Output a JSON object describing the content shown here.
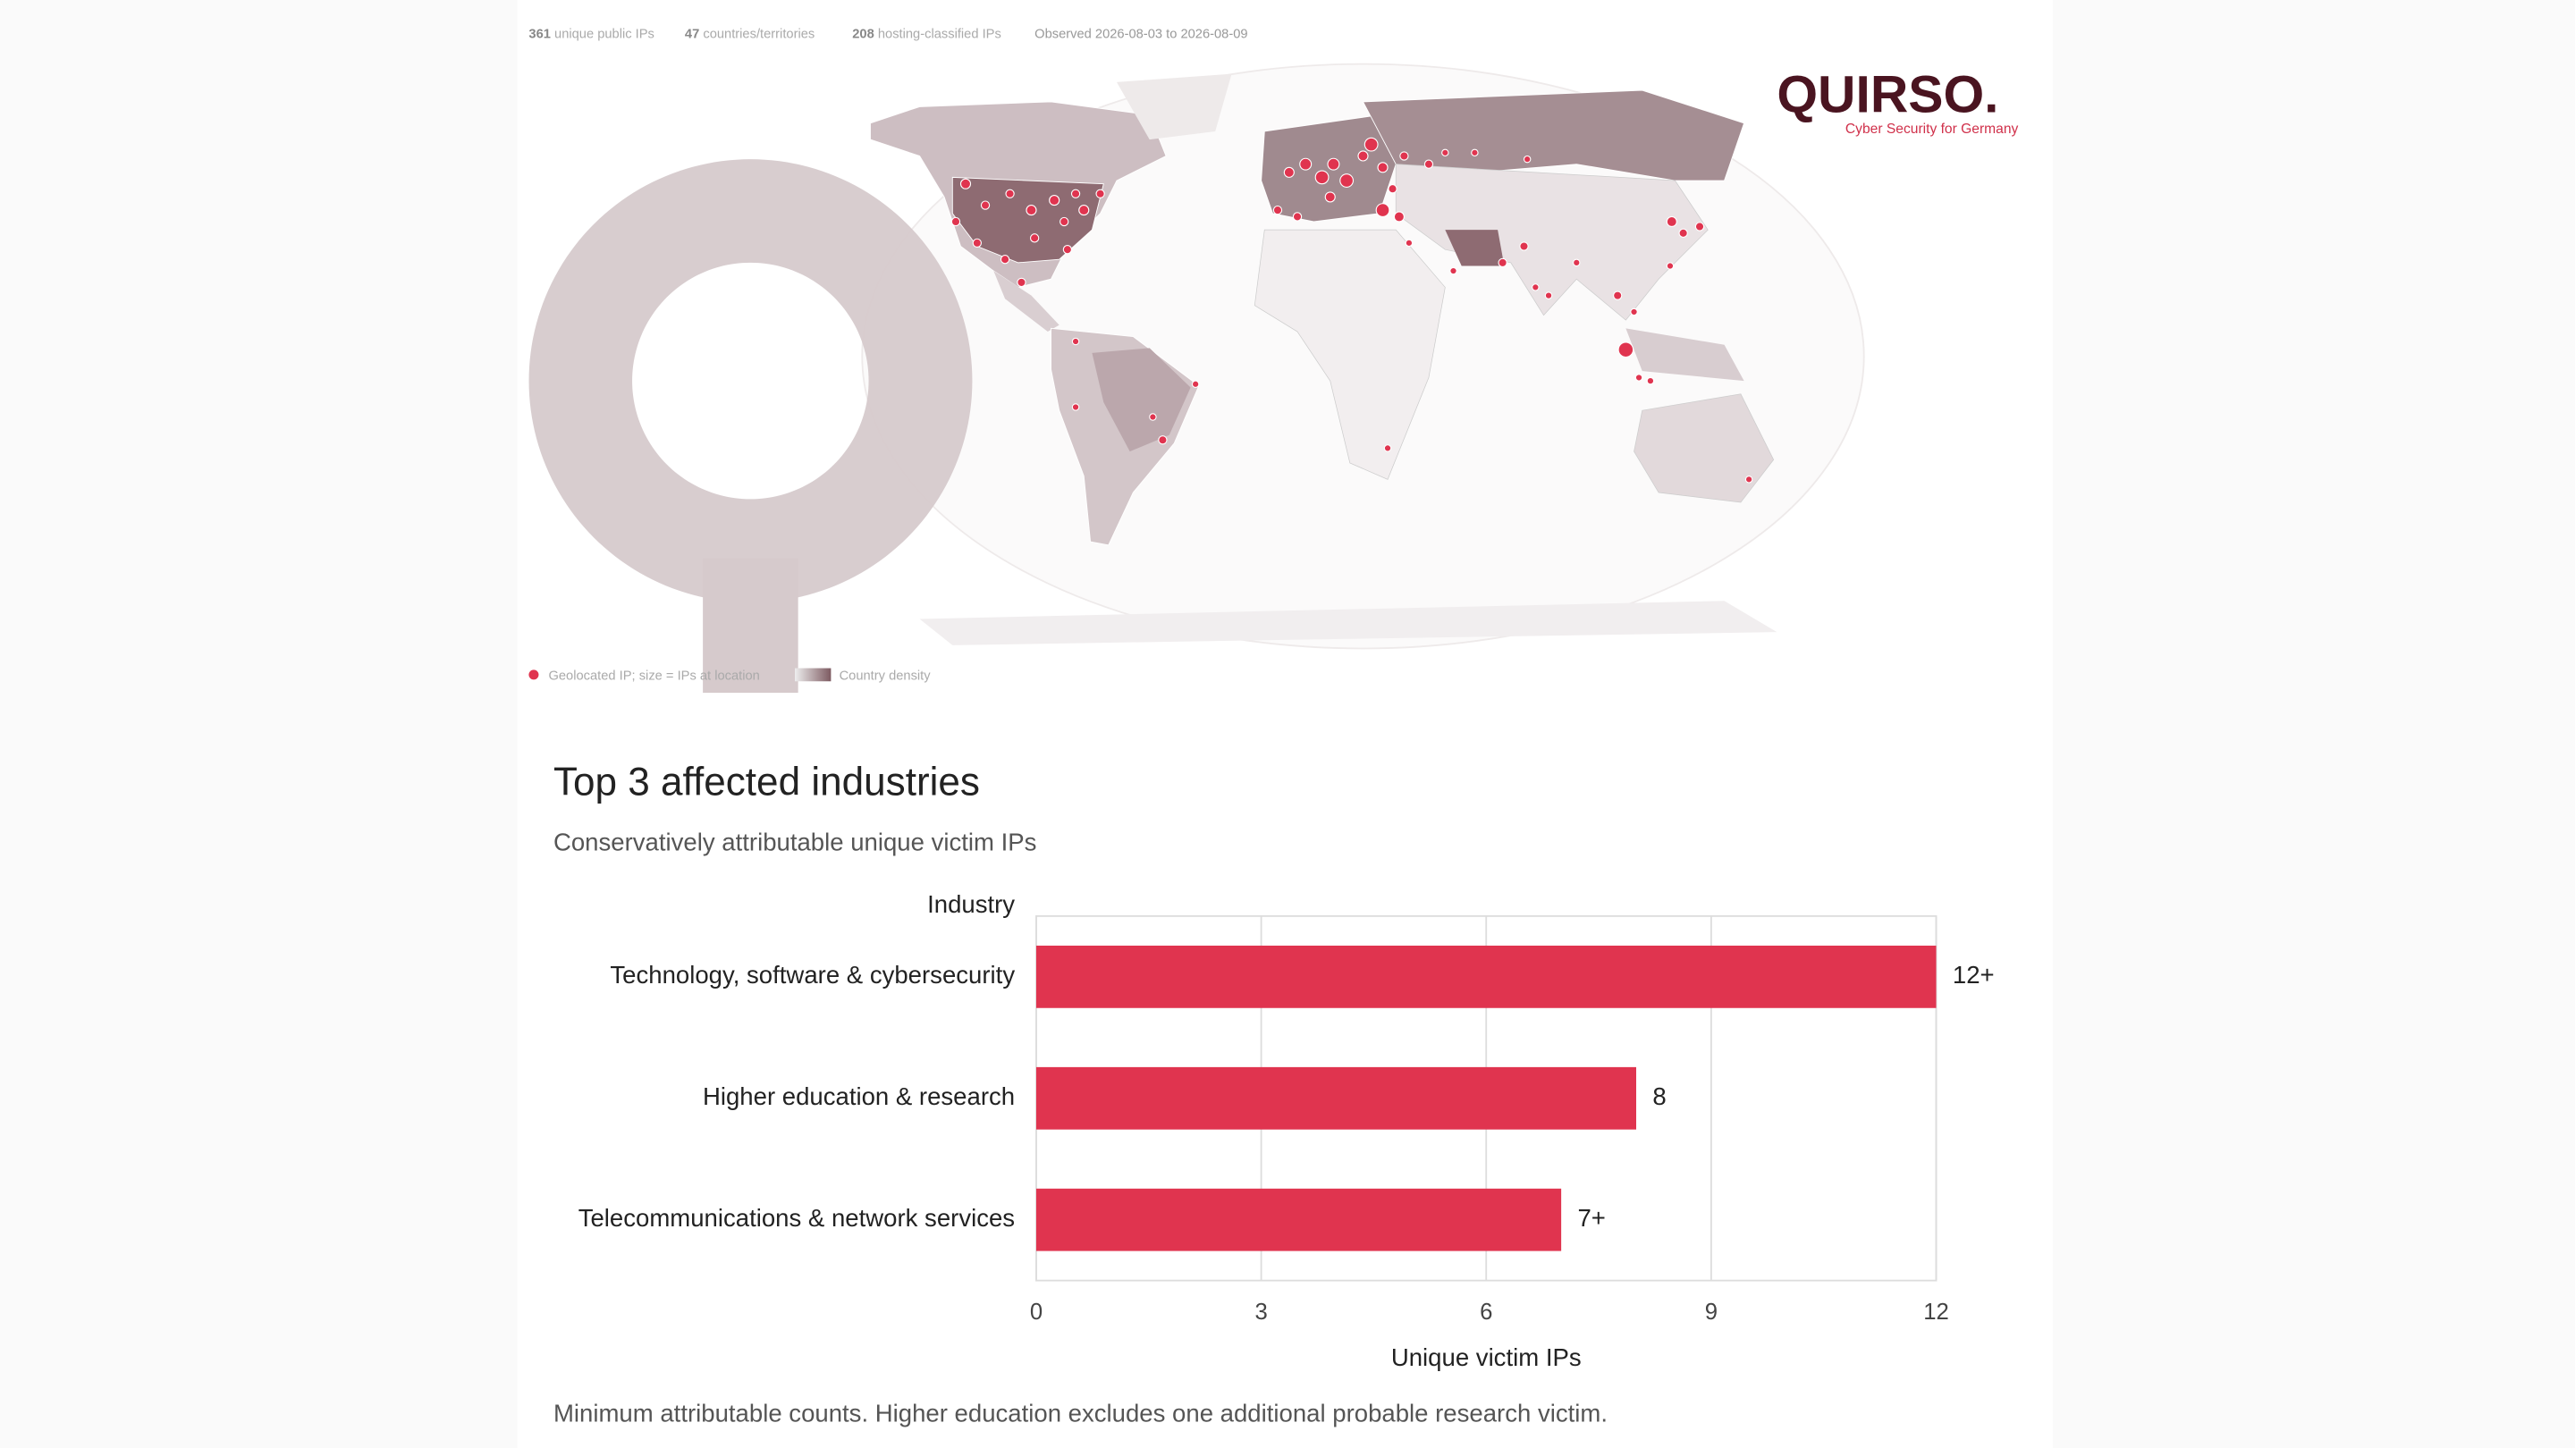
{
  "header": {
    "stats": [
      {
        "count": 361,
        "label": "unique public IPs"
      },
      {
        "count": 47,
        "label": "countries/territories"
      },
      {
        "count": 208,
        "label": "hosting-classified IPs"
      }
    ],
    "observed": "Observed 2026-08-03 to 2026-08-09"
  },
  "logo": {
    "name": "QUIRSO.",
    "tagline": "Cyber Security for Germany"
  },
  "map_legend": {
    "dots": "Geolocated IP; size = IPs at location",
    "shading": "Country density"
  },
  "chart_data": {
    "type": "bar",
    "orientation": "horizontal",
    "title": "Top 3 affected industries",
    "subtitle": "Conservatively attributable unique victim IPs",
    "y_label": "Industry",
    "x_label": "Unique victim IPs",
    "categories": [
      "Technology, software & cybersecurity",
      "Higher education & research",
      "Telecommunications & network services"
    ],
    "values": [
      12,
      8,
      7
    ],
    "value_labels": [
      "12+",
      "8",
      "7+"
    ],
    "color": "#e0344f",
    "xlim": [
      0,
      12
    ],
    "xticks": [
      0,
      3,
      6,
      9,
      12
    ],
    "grid": true,
    "note": "Minimum attributable counts. Higher education excludes one additional probable research victim."
  }
}
